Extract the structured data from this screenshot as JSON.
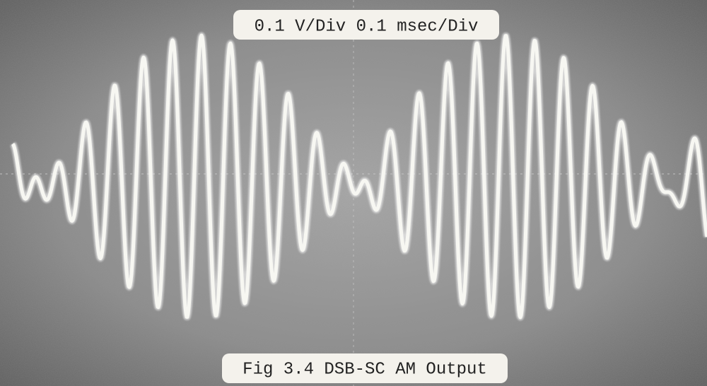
{
  "top_label": "0.1 V/Div 0.1 msec/Div",
  "caption": "Fig 3.4 DSB-SC AM Output"
}
